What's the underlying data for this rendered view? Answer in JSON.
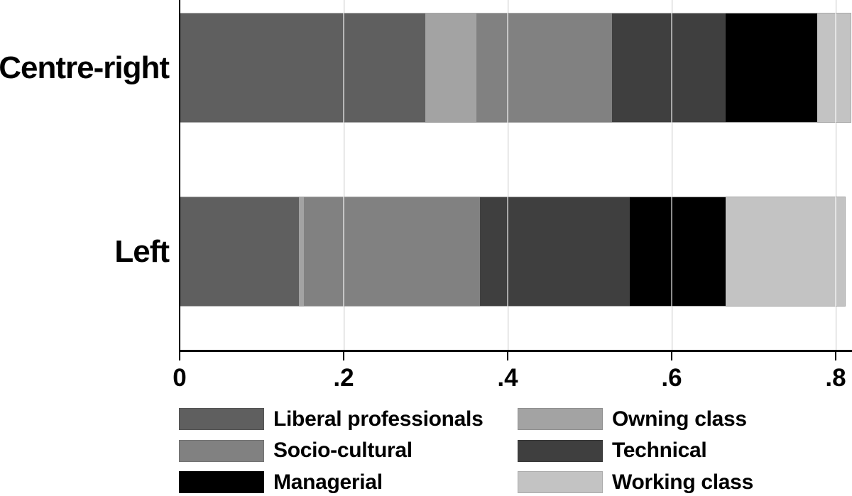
{
  "figure": {
    "background_color": "#ffffff",
    "axis_color": "#000000",
    "gridline_color": "#e7e7e7",
    "text_color": "#000000"
  },
  "chart_data": {
    "type": "bar",
    "orientation": "horizontal",
    "stacked": true,
    "title": "",
    "xlabel": "",
    "ylabel": "",
    "categories": [
      "Centre-right",
      "Left"
    ],
    "series": [
      {
        "name": "Liberal professionals",
        "color": "#5f5f5f",
        "values": [
          0.299,
          0.145
        ]
      },
      {
        "name": "Owning class",
        "color": "#a3a3a3",
        "values": [
          0.062,
          0.006
        ]
      },
      {
        "name": "Socio-cultural",
        "color": "#818181",
        "values": [
          0.165,
          0.214
        ]
      },
      {
        "name": "Technical",
        "color": "#3f3f3f",
        "values": [
          0.139,
          0.183
        ]
      },
      {
        "name": "Managerial",
        "color": "#000000",
        "values": [
          0.112,
          0.117
        ]
      },
      {
        "name": "Working class",
        "color": "#c3c3c3",
        "values": [
          0.042,
          0.147
        ]
      }
    ],
    "category_totals": [
      0.819,
      0.812
    ],
    "x_ticks": {
      "values": [
        0,
        0.2,
        0.4,
        0.6,
        0.8
      ],
      "labels": [
        "0",
        ".2",
        ".4",
        ".6",
        ".8"
      ]
    },
    "xlim": [
      0,
      0.82
    ],
    "grid": "vertical",
    "legend_position": "bottom",
    "legend_columns": 2
  }
}
